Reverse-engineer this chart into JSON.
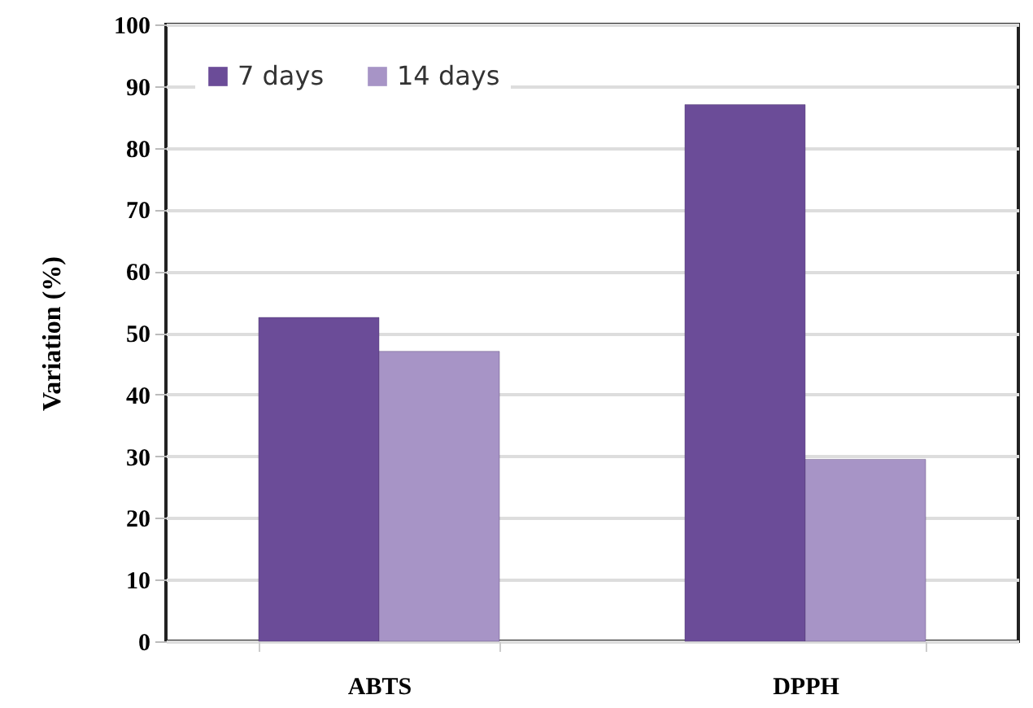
{
  "chart_data": {
    "type": "bar",
    "ylabel": "Variation (%)",
    "categories": [
      "ABTS",
      "DPPH"
    ],
    "series": [
      {
        "name": "7 days",
        "color": "#6b4c98",
        "values": [
          52.5,
          87
        ]
      },
      {
        "name": "14 days",
        "color": "#a794c6",
        "values": [
          47,
          29.5
        ]
      }
    ],
    "ylim": [
      0,
      100
    ],
    "yticks": [
      0,
      10,
      20,
      30,
      40,
      50,
      60,
      70,
      80,
      90,
      100
    ],
    "grid": true,
    "legend": "top left"
  }
}
